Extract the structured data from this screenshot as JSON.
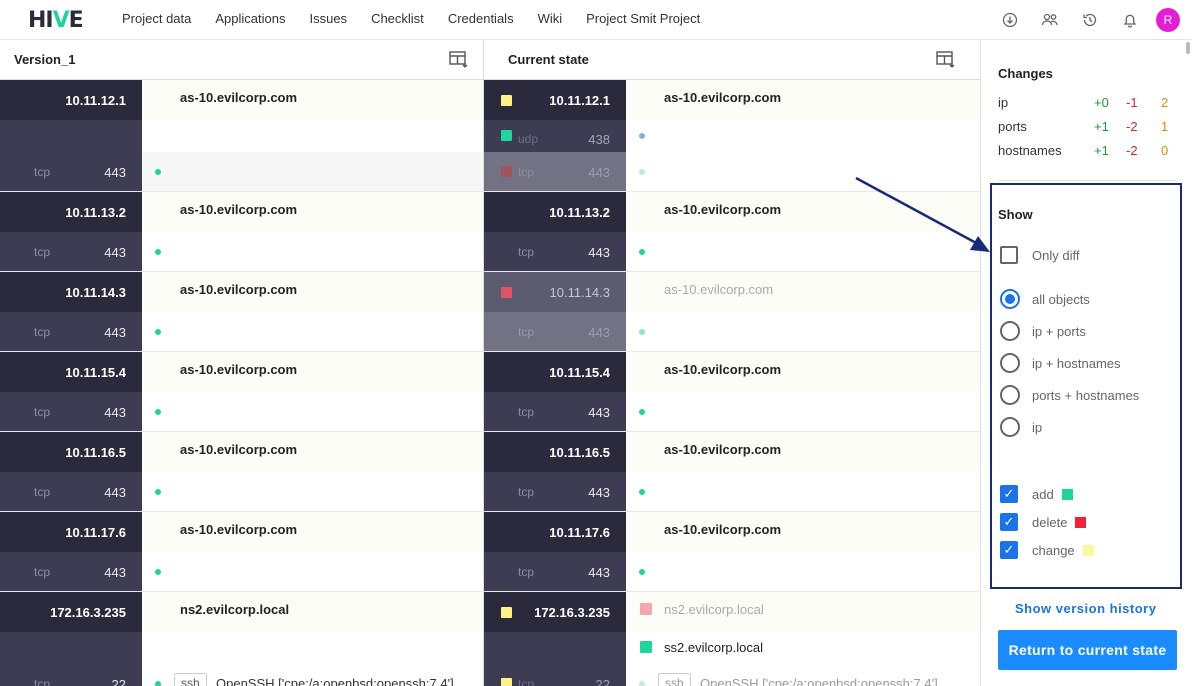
{
  "nav": {
    "logo_left": "HI",
    "logo_v": "V",
    "logo_right": "E",
    "items": [
      "Project data",
      "Applications",
      "Issues",
      "Checklist",
      "Credentials",
      "Wiki",
      "Project Smit Project"
    ],
    "avatar": "R"
  },
  "left": {
    "title": "Version_1",
    "hosts": [
      {
        "ip": "10.11.12.1",
        "hostname": "as-10.evilcorp.com",
        "proto": "tcp",
        "port": "443"
      },
      {
        "ip": "10.11.13.2",
        "hostname": "as-10.evilcorp.com",
        "proto": "tcp",
        "port": "443"
      },
      {
        "ip": "10.11.14.3",
        "hostname": "as-10.evilcorp.com",
        "proto": "tcp",
        "port": "443"
      },
      {
        "ip": "10.11.15.4",
        "hostname": "as-10.evilcorp.com",
        "proto": "tcp",
        "port": "443"
      },
      {
        "ip": "10.11.16.5",
        "hostname": "as-10.evilcorp.com",
        "proto": "tcp",
        "port": "443"
      },
      {
        "ip": "10.11.17.6",
        "hostname": "as-10.evilcorp.com",
        "proto": "tcp",
        "port": "443"
      },
      {
        "ip": "172.16.3.235",
        "hostname": "ns2.evilcorp.local",
        "proto": "tcp",
        "port": "22",
        "service": "ssh",
        "service_desc": "OpenSSH   ['cpe:/a:openbsd:openssh:7.4']"
      }
    ]
  },
  "right": {
    "title": "Current state",
    "hosts": [
      {
        "ip": "10.11.12.1",
        "hostname": "as-10.evilcorp.com",
        "udp_proto": "udp",
        "udp_port": "438",
        "proto": "tcp",
        "port": "443"
      },
      {
        "ip": "10.11.13.2",
        "hostname": "as-10.evilcorp.com",
        "proto": "tcp",
        "port": "443"
      },
      {
        "ip": "10.11.14.3",
        "hostname": "as-10.evilcorp.com",
        "proto": "tcp",
        "port": "443"
      },
      {
        "ip": "10.11.15.4",
        "hostname": "as-10.evilcorp.com",
        "proto": "tcp",
        "port": "443"
      },
      {
        "ip": "10.11.16.5",
        "hostname": "as-10.evilcorp.com",
        "proto": "tcp",
        "port": "443"
      },
      {
        "ip": "10.11.17.6",
        "hostname": "as-10.evilcorp.com",
        "proto": "tcp",
        "port": "443"
      },
      {
        "ip": "172.16.3.235",
        "hostname_old": "ns2.evilcorp.local",
        "hostname_new": "ss2.evilcorp.local",
        "proto": "tcp",
        "port": "22",
        "service": "ssh",
        "service_desc": "OpenSSH   ['cpe:/a:openbsd:openssh:7.4']"
      }
    ]
  },
  "sidebar": {
    "changes_title": "Changes",
    "changes": [
      {
        "label": "ip",
        "add": "+0",
        "del": "-1",
        "mod": "2"
      },
      {
        "label": "ports",
        "add": "+1",
        "del": "-2",
        "mod": "1"
      },
      {
        "label": "hostnames",
        "add": "+1",
        "del": "-2",
        "mod": "0"
      }
    ],
    "show_title": "Show",
    "only_diff": "Only diff",
    "radios": [
      "all objects",
      "ip + ports",
      "ip + hostnames",
      "ports + hostnames",
      "ip"
    ],
    "filters": [
      {
        "label": "add",
        "color": "#1fd59c"
      },
      {
        "label": "delete",
        "color": "#f0213a"
      },
      {
        "label": "change",
        "color": "#fdf8a0"
      }
    ],
    "history_link": "Show version history",
    "return_button": "Return to current state"
  },
  "colors": {
    "add": "#1fd59c",
    "delete": "#e0546a",
    "change": "#fdf28a",
    "accent": "#1a8cff"
  }
}
